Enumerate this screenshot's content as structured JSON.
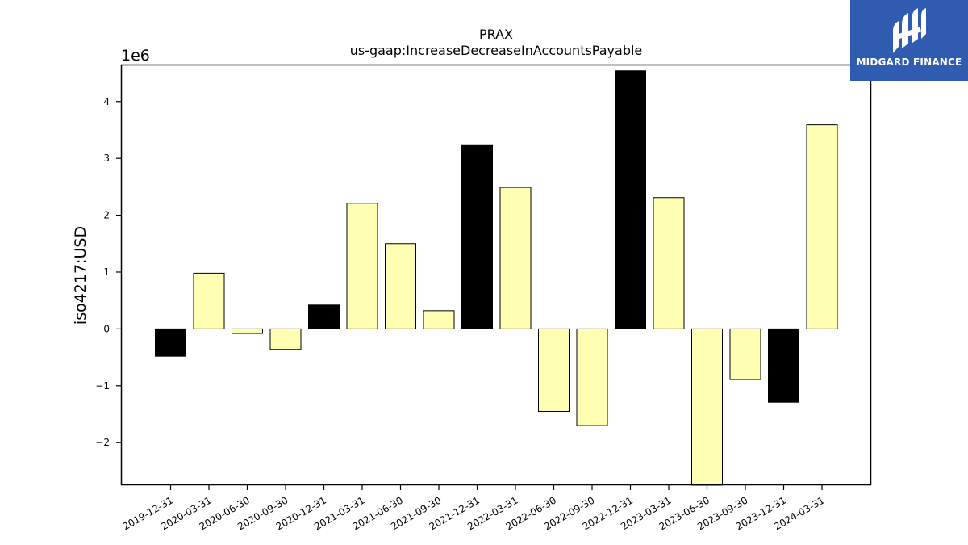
{
  "chart_data": {
    "type": "bar",
    "title": "PRAX",
    "subtitle": "us-gaap:IncreaseDecreaseInAccountsPayable",
    "xlabel": "",
    "ylabel": "iso4217:USD",
    "y_multiplier_label": "1e6",
    "ylim": [
      -2.75,
      4.65
    ],
    "yticks": [
      -2,
      -1,
      0,
      1,
      2,
      3,
      4
    ],
    "ytick_labels": [
      "−2",
      "−1",
      "0",
      "1",
      "2",
      "3",
      "4"
    ],
    "categories": [
      "2019-12-31",
      "2020-03-31",
      "2020-06-30",
      "2020-09-30",
      "2020-12-31",
      "2021-03-31",
      "2021-06-30",
      "2021-09-30",
      "2021-12-31",
      "2022-03-31",
      "2022-06-30",
      "2022-09-30",
      "2022-12-31",
      "2023-03-31",
      "2023-06-30",
      "2023-09-30",
      "2023-12-31",
      "2024-03-31"
    ],
    "values": [
      -0.48,
      0.98,
      -0.08,
      -0.36,
      0.42,
      2.21,
      1.5,
      0.32,
      3.24,
      2.49,
      -1.45,
      -1.7,
      4.54,
      2.31,
      -2.8,
      -0.89,
      -1.29,
      3.59
    ],
    "bar_colors": [
      "#000000",
      "#ffffb3",
      "#ffffb3",
      "#ffffb3",
      "#000000",
      "#ffffb3",
      "#ffffb3",
      "#ffffb3",
      "#000000",
      "#ffffb3",
      "#ffffb3",
      "#ffffb3",
      "#000000",
      "#ffffb3",
      "#ffffb3",
      "#ffffb3",
      "#000000",
      "#ffffb3"
    ],
    "grid": false,
    "legend": "none"
  },
  "logo": {
    "text": "MIDGARD FINANCE",
    "icon": "midgard-logo-icon",
    "background": "#2f5bb0"
  }
}
